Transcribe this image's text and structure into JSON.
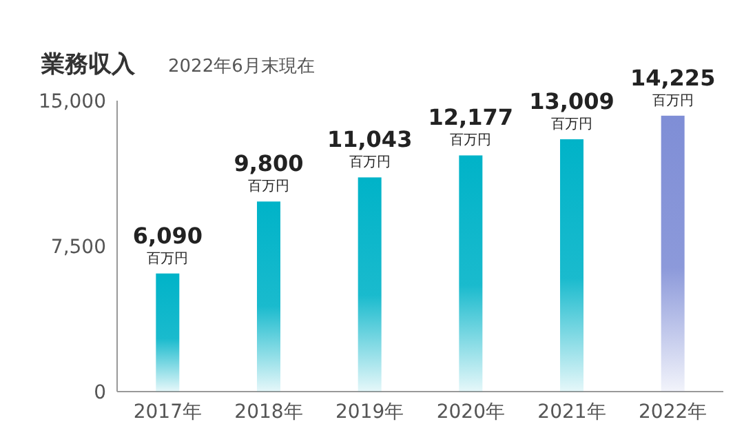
{
  "chart_data": {
    "type": "bar",
    "title": "業務収入",
    "subtitle": "2022年6月末現在",
    "categories": [
      "2017年",
      "2018年",
      "2019年",
      "2020年",
      "2021年",
      "2022年"
    ],
    "values": [
      6090,
      9800,
      11043,
      12177,
      13009,
      14225
    ],
    "value_labels": [
      "6,090",
      "9,800",
      "11,043",
      "12,177",
      "13,009",
      "14,225"
    ],
    "annotations": [
      {
        "text": "百万円",
        "x": "2017年",
        "y": 6090
      },
      {
        "text": "百万円",
        "x": "2018年",
        "y": 9800
      },
      {
        "text": "百万円",
        "x": "2019年",
        "y": 11043
      },
      {
        "text": "百万円",
        "x": "2020年",
        "y": 12177
      },
      {
        "text": "百万円",
        "x": "2021年",
        "y": 13009
      },
      {
        "text": "百万円",
        "x": "2022年",
        "y": 14225
      }
    ],
    "colors": [
      "#00b3c8",
      "#00b3c8",
      "#00b3c8",
      "#00b3c8",
      "#00b3c8",
      "#7f8ed6"
    ],
    "ylim": [
      0,
      15000
    ],
    "yticks": [
      {
        "value": 0,
        "label": "0"
      },
      {
        "value": 7500,
        "label": "7,500"
      },
      {
        "value": 15000,
        "label": "15,000"
      }
    ],
    "grid": false
  }
}
